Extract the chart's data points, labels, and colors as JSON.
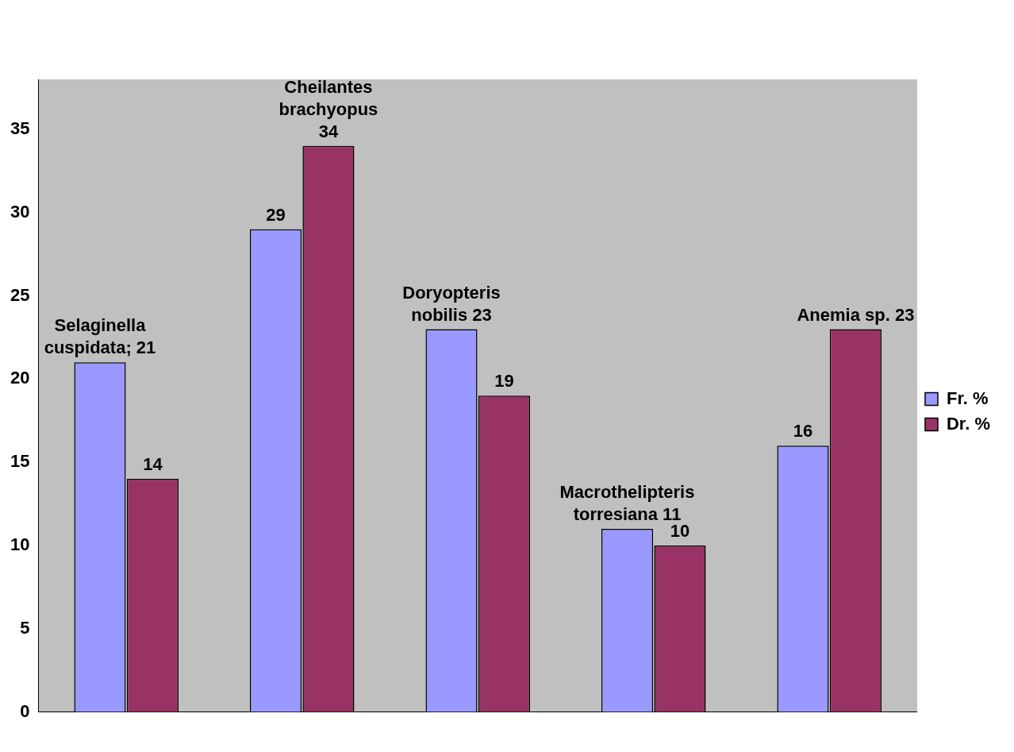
{
  "chart_data": {
    "type": "bar",
    "categories": [
      null,
      null,
      null,
      null,
      null
    ],
    "series": [
      {
        "name": "Fr. %",
        "color": "#9999ff",
        "values": [
          21,
          29,
          23,
          11,
          16
        ],
        "value_labels": [
          "Selaginella cuspidata; 21",
          "29",
          "Doryopteris nobilis 23",
          "Macrothelipteris torresiana 11",
          "16"
        ]
      },
      {
        "name": "Dr. %",
        "color": "#993366",
        "values": [
          14,
          34,
          19,
          10,
          23
        ],
        "value_labels": [
          "14",
          "Cheilantes brachyopus 34",
          "19",
          "10",
          "Anemia sp. 23"
        ]
      }
    ],
    "ylim": [
      0,
      38
    ],
    "yticks": [
      0,
      5,
      10,
      15,
      20,
      25,
      30,
      35
    ],
    "grid": false,
    "legend": "right"
  }
}
